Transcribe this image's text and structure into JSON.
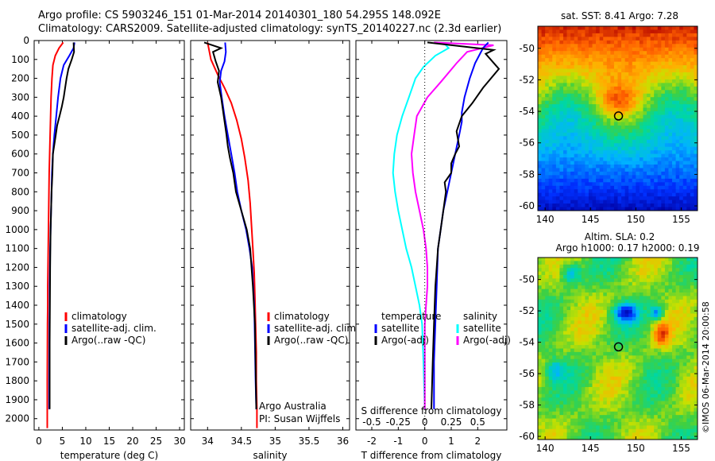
{
  "header": {
    "line1": "Argo profile: CS 5903246_151 01-Mar-2014 20140301_180 54.295S 148.092E",
    "line2": "Climatology: CARS2009. Satellite-adjusted climatology: synTS_20140227.nc (2.3d earlier)"
  },
  "colors": {
    "climatology": "#ff0000",
    "satellite": "#0000ff",
    "argo": "#000000",
    "s_satellite": "#00ffff",
    "s_argo": "#ff00ff"
  },
  "chart_data": [
    {
      "id": "temperature",
      "type": "line",
      "xlabel": "temperature (deg C)",
      "ylabel": "",
      "xlim": [
        -1,
        31
      ],
      "ylim": [
        2060,
        0
      ],
      "xticks": [
        0,
        5,
        10,
        15,
        20,
        25,
        30
      ],
      "yticks": [
        0,
        100,
        200,
        300,
        400,
        500,
        600,
        700,
        800,
        900,
        1000,
        1100,
        1200,
        1300,
        1400,
        1500,
        1600,
        1700,
        1800,
        1900,
        2000
      ],
      "legend": [
        "climatology",
        "satellite-adj. clim.",
        "Argo(..raw -QC)"
      ],
      "series": [
        {
          "name": "climatology",
          "color": "#ff0000",
          "x": [
            5.2,
            4.3,
            3.5,
            3.0,
            2.8,
            2.6,
            2.5,
            2.4,
            2.3,
            2.2,
            2.15,
            2.1,
            2.05,
            2.0,
            1.95,
            1.9,
            1.9,
            1.85,
            1.8,
            1.8
          ],
          "y": [
            10,
            40,
            80,
            130,
            200,
            300,
            400,
            500,
            600,
            700,
            800,
            900,
            1000,
            1100,
            1200,
            1300,
            1400,
            1500,
            1800,
            2050
          ]
        },
        {
          "name": "satellite-adj. clim.",
          "color": "#0000ff",
          "x": [
            7.6,
            7.4,
            6.5,
            5.3,
            4.6,
            4.1,
            3.7,
            3.3,
            3.0,
            2.8,
            2.7,
            2.6,
            2.5,
            2.4,
            2.35,
            2.3,
            2.3,
            2.25,
            2.2,
            2.2
          ],
          "y": [
            10,
            40,
            80,
            130,
            200,
            300,
            400,
            500,
            600,
            700,
            800,
            900,
            1000,
            1100,
            1200,
            1300,
            1400,
            1500,
            1800,
            1950
          ]
        },
        {
          "name": "Argo(..raw -QC)",
          "color": "#000000",
          "x": [
            7.4,
            7.5,
            7.0,
            6.3,
            5.9,
            5.6,
            5.3,
            4.9,
            4.4,
            3.9,
            3.6,
            3.3,
            3.0,
            2.9,
            2.7,
            2.6,
            2.5,
            2.4,
            2.35,
            2.3,
            2.3
          ],
          "y": [
            10,
            60,
            100,
            150,
            200,
            250,
            300,
            350,
            400,
            450,
            500,
            550,
            600,
            700,
            800,
            900,
            1000,
            1200,
            1400,
            1600,
            1950
          ]
        }
      ]
    },
    {
      "id": "salinity",
      "type": "line",
      "xlabel": "salinity",
      "ylabel": "",
      "xlim": [
        33.75,
        36.1
      ],
      "ylim": [
        2060,
        0
      ],
      "xticks": [
        34,
        34.5,
        35,
        35.5,
        36
      ],
      "xticklabels": [
        "34",
        "34.5",
        "35",
        "35.5",
        "36"
      ],
      "legend": [
        "climatology",
        "satellite-adj. clim.",
        "Argo(..raw -QC)"
      ],
      "annotation": [
        "Argo Australia",
        "PI: Susan Wijffels"
      ],
      "series": [
        {
          "name": "climatology",
          "color": "#ff0000",
          "x": [
            34.0,
            34.05,
            34.15,
            34.25,
            34.35,
            34.43,
            34.5,
            34.55,
            34.6,
            34.63,
            34.65,
            34.67,
            34.69,
            34.7,
            34.71,
            34.72,
            34.72,
            34.73,
            34.73
          ],
          "y": [
            10,
            100,
            180,
            250,
            330,
            420,
            520,
            620,
            740,
            860,
            980,
            1100,
            1230,
            1360,
            1500,
            1650,
            1800,
            1950,
            2050
          ]
        },
        {
          "name": "satellite-adj. clim.",
          "color": "#0000ff",
          "x": [
            34.26,
            34.27,
            34.25,
            34.2,
            34.18,
            34.21,
            34.25,
            34.3,
            34.35,
            34.4,
            34.44,
            34.5,
            34.57,
            34.62,
            34.66,
            34.69,
            34.7,
            34.71,
            34.72
          ],
          "y": [
            10,
            60,
            110,
            160,
            220,
            300,
            400,
            500,
            600,
            700,
            800,
            900,
            1000,
            1100,
            1200,
            1400,
            1600,
            1800,
            1950
          ]
        },
        {
          "name": "Argo(..raw -QC)",
          "color": "#000000",
          "x": [
            33.95,
            34.2,
            34.08,
            34.12,
            34.17,
            34.15,
            34.2,
            34.24,
            34.28,
            34.3,
            34.33,
            34.38,
            34.42,
            34.5,
            34.58,
            34.63,
            34.67,
            34.7,
            34.72
          ],
          "y": [
            10,
            40,
            60,
            110,
            160,
            220,
            300,
            400,
            500,
            560,
            620,
            700,
            800,
            900,
            1000,
            1100,
            1300,
            1500,
            1950
          ]
        }
      ]
    },
    {
      "id": "differences",
      "type": "line",
      "xlabel": "T difference from climatology",
      "xlabel2": "S difference from climatology",
      "xlim": [
        -2.6,
        3.1
      ],
      "ylim": [
        2060,
        0
      ],
      "xticks": [
        -2,
        -1,
        0,
        1,
        2
      ],
      "xticks_s": [
        -0.5,
        -0.25,
        0,
        0.25,
        0.5
      ],
      "xticklabels_s": [
        "-0.5",
        "-0.25",
        "0",
        "0.25",
        "0.5"
      ],
      "legend_t": [
        "temperature",
        "satellite",
        "Argo(-adj)"
      ],
      "legend_s": [
        "salinity",
        "satellite",
        "Argo(-adj)"
      ],
      "series": [
        {
          "name": "satellite",
          "color": "#00ffff",
          "x": [
            0.7,
            0.9,
            0.4,
            -0.05,
            -0.35,
            -0.6,
            -0.85,
            -1.05,
            -1.15,
            -1.2,
            -1.12,
            -1.0,
            -0.85,
            -0.7,
            -0.5,
            -0.35,
            -0.2,
            -0.1,
            -0.05,
            0.0
          ],
          "y": [
            10,
            40,
            80,
            140,
            200,
            300,
            400,
            500,
            600,
            700,
            800,
            900,
            1000,
            1100,
            1200,
            1300,
            1400,
            1500,
            1700,
            1950
          ]
        },
        {
          "name": "Argo(-adj)",
          "color": "#ff00ff",
          "x": [
            0.35,
            2.6,
            1.6,
            1.2,
            0.6,
            0.1,
            -0.3,
            -0.4,
            -0.5,
            -0.45,
            -0.35,
            -0.2,
            -0.05,
            0.05,
            0.1,
            0.1,
            0.05,
            0.0,
            0.0,
            0.0
          ],
          "y": [
            10,
            25,
            60,
            120,
            220,
            300,
            400,
            500,
            600,
            700,
            800,
            900,
            1000,
            1100,
            1200,
            1300,
            1400,
            1500,
            1700,
            1950
          ]
        },
        {
          "name": "satellite",
          "color": "#0000ff",
          "x": [
            2.4,
            2.2,
            1.9,
            1.7,
            1.5,
            1.4,
            1.4,
            1.3,
            1.15,
            1.0,
            0.85,
            0.7,
            0.6,
            0.5,
            0.45,
            0.4,
            0.35,
            0.35
          ],
          "y": [
            10,
            40,
            120,
            200,
            300,
            380,
            430,
            500,
            600,
            700,
            800,
            900,
            1000,
            1100,
            1300,
            1500,
            1700,
            1950
          ]
        },
        {
          "name": "Argo(-adj)",
          "color": "#000000",
          "x": [
            0.1,
            2.6,
            2.3,
            2.8,
            2.2,
            1.8,
            1.4,
            1.2,
            1.3,
            1.15,
            1.0,
            1.0,
            0.75,
            0.8,
            0.7,
            0.6,
            0.5,
            0.45,
            0.4,
            0.35,
            0.3,
            0.25
          ],
          "y": [
            10,
            50,
            70,
            150,
            250,
            330,
            400,
            480,
            560,
            600,
            650,
            700,
            750,
            800,
            900,
            1000,
            1100,
            1200,
            1300,
            1500,
            1700,
            1950
          ]
        }
      ]
    },
    {
      "id": "sst_map",
      "type": "heatmap",
      "title": "sat. SST: 8.41  Argo: 7.28",
      "xticks": [
        140,
        145,
        150,
        155
      ],
      "yticks": [
        -50,
        -52,
        -54,
        -56,
        -58,
        -60
      ],
      "xlim": [
        139.2,
        156.8
      ],
      "ylim": [
        -60.3,
        -48.6
      ],
      "marker": {
        "lon": 148.092,
        "lat": -54.295
      }
    },
    {
      "id": "sla_map",
      "type": "heatmap",
      "title": "Altim. SLA: 0.2",
      "subtitle": "Argo h1000: 0.17 h2000: 0.19",
      "xticks": [
        140,
        145,
        150,
        155
      ],
      "yticks": [
        -50,
        -52,
        -54,
        -56,
        -58,
        -60
      ],
      "xlim": [
        139.2,
        156.8
      ],
      "ylim": [
        -60.2,
        -48.6
      ],
      "marker": {
        "lon": 148.092,
        "lat": -54.295
      }
    }
  ],
  "watermark": "©IMOS 06-Mar-2014 20:00:58"
}
